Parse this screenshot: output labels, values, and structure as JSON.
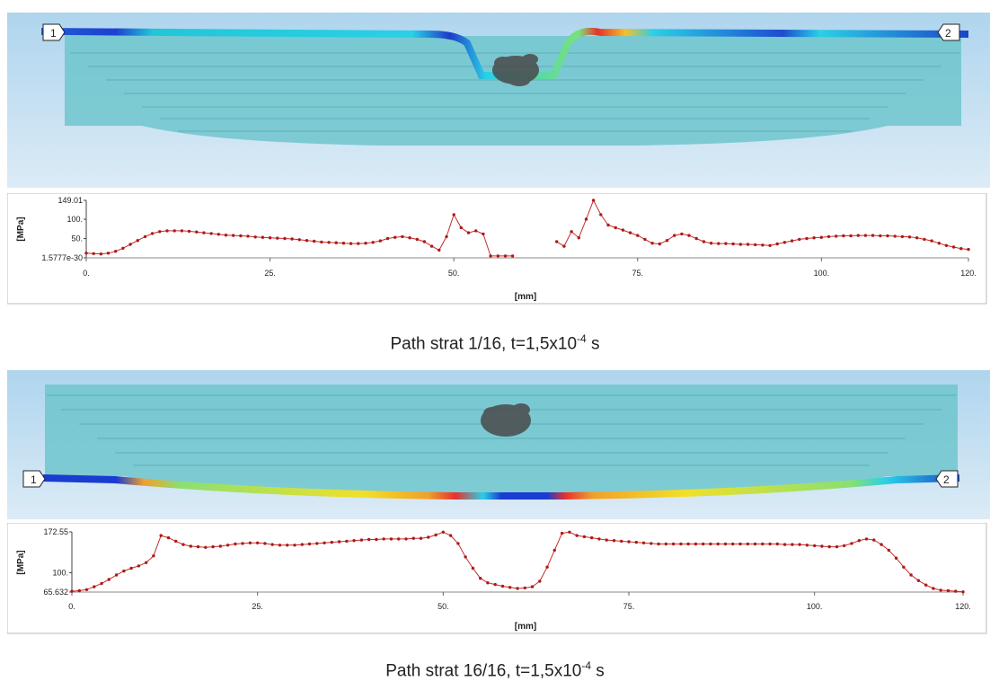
{
  "panels": [
    {
      "marker_start": "1",
      "marker_end": "2",
      "caption": {
        "prefix": "Path strat 1/16, t=1,5x10",
        "exp": "-4",
        "suffix": " s"
      }
    },
    {
      "marker_start": "1",
      "marker_end": "2",
      "caption": {
        "prefix": "Path strat 16/16, t=1,5x10",
        "exp": "-4",
        "suffix": " s"
      }
    }
  ],
  "colors": {
    "line": "#c0302a",
    "marker": "#b01818",
    "band_light": "#c9e2f3",
    "band_dark": "#8fc4e4",
    "plate": "#6ec5cc"
  },
  "chart_data": [
    {
      "type": "line",
      "xlabel": "[mm]",
      "ylabel": "[MPa]",
      "xlim": [
        0,
        120
      ],
      "ylim": [
        0,
        149.01
      ],
      "xticks": [
        "0.",
        "25.",
        "50.",
        "75.",
        "100.",
        "120."
      ],
      "ytick_values": [
        1.5777e-30,
        50,
        100,
        149.01
      ],
      "ytick_labels": [
        "1.5777e-30",
        "50.",
        "100.",
        "149.01"
      ],
      "series": [
        {
          "x": [
            0,
            1,
            2,
            3,
            4,
            5,
            6,
            7,
            8,
            9,
            10,
            11,
            12,
            13,
            14,
            15,
            16,
            17,
            18,
            19,
            20,
            21,
            22,
            23,
            24,
            25,
            26,
            27,
            28,
            29,
            30,
            31,
            32,
            33,
            34,
            35,
            36,
            37,
            38,
            39,
            40,
            41,
            42,
            43,
            44,
            45,
            46,
            47,
            48,
            49,
            50,
            51,
            52,
            53,
            54,
            55,
            56,
            57,
            58
          ],
          "y": [
            12,
            11,
            10,
            12,
            17,
            25,
            35,
            45,
            55,
            63,
            68,
            70,
            70,
            70,
            69,
            67,
            65,
            63,
            61,
            59,
            58,
            57,
            56,
            54,
            53,
            52,
            51,
            50,
            49,
            47,
            45,
            43,
            41,
            40,
            39,
            38,
            37,
            37,
            38,
            40,
            44,
            50,
            53,
            55,
            52,
            48,
            42,
            30,
            20,
            55,
            112,
            78,
            65,
            70,
            62,
            5,
            5,
            5,
            5
          ]
        },
        {
          "x": [
            64,
            65,
            66,
            67,
            68,
            69,
            70,
            71,
            72,
            73,
            74,
            75,
            76,
            77,
            78,
            79,
            80,
            81,
            82,
            83,
            84,
            85,
            86,
            87,
            88,
            89,
            90,
            91,
            92,
            93,
            94,
            95,
            96,
            97,
            98,
            99,
            100,
            101,
            102,
            103,
            104,
            105,
            106,
            107,
            108,
            109,
            110,
            111,
            112,
            113,
            114,
            115,
            116,
            117,
            118,
            119,
            120
          ],
          "y": [
            42,
            30,
            68,
            52,
            100,
            149,
            112,
            85,
            78,
            72,
            65,
            58,
            48,
            38,
            36,
            45,
            58,
            62,
            58,
            50,
            42,
            38,
            37,
            37,
            36,
            35,
            35,
            34,
            33,
            32,
            36,
            40,
            44,
            48,
            50,
            52,
            53,
            55,
            56,
            57,
            57,
            58,
            58,
            58,
            57,
            57,
            56,
            55,
            54,
            52,
            48,
            44,
            38,
            32,
            28,
            24,
            22
          ]
        }
      ]
    },
    {
      "type": "line",
      "xlabel": "[mm]",
      "ylabel": "[MPa]",
      "xlim": [
        0,
        120
      ],
      "ylim": [
        65.632,
        172.55
      ],
      "xticks": [
        "0.",
        "25.",
        "50.",
        "75.",
        "100.",
        "120."
      ],
      "ytick_values": [
        65.632,
        100,
        172.55
      ],
      "ytick_labels": [
        "65.632",
        "100.",
        "172.55"
      ],
      "series": [
        {
          "x": [
            0,
            1,
            2,
            3,
            4,
            5,
            6,
            7,
            8,
            9,
            10,
            11,
            12,
            13,
            14,
            15,
            16,
            17,
            18,
            19,
            20,
            21,
            22,
            23,
            24,
            25,
            26,
            27,
            28,
            29,
            30,
            31,
            32,
            33,
            34,
            35,
            36,
            37,
            38,
            39,
            40,
            41,
            42,
            43,
            44,
            45,
            46,
            47,
            48,
            49,
            50,
            51,
            52,
            53,
            54,
            55,
            56,
            57,
            58,
            59,
            60,
            61,
            62,
            63,
            64,
            65,
            66,
            67,
            68,
            69,
            70,
            71,
            72,
            73,
            74,
            75,
            76,
            77,
            78,
            79,
            80,
            81,
            82,
            83,
            84,
            85,
            86,
            87,
            88,
            89,
            90,
            91,
            92,
            93,
            94,
            95,
            96,
            97,
            98,
            99,
            100,
            101,
            102,
            103,
            104,
            105,
            106,
            107,
            108,
            109,
            110,
            111,
            112,
            113,
            114,
            115,
            116,
            117,
            118,
            119,
            120
          ],
          "y": [
            67,
            68,
            70,
            75,
            81,
            88,
            96,
            103,
            108,
            112,
            118,
            130,
            166,
            162,
            156,
            150,
            147,
            146,
            145,
            146,
            147,
            149,
            151,
            152,
            153,
            153,
            152,
            150,
            149,
            149,
            149,
            150,
            151,
            152,
            153,
            154,
            155,
            156,
            157,
            158,
            159,
            159,
            160,
            160,
            160,
            160,
            161,
            161,
            163,
            167,
            172,
            166,
            152,
            128,
            108,
            90,
            82,
            79,
            76,
            74,
            72,
            73,
            75,
            85,
            110,
            140,
            170,
            172,
            166,
            164,
            162,
            160,
            158,
            157,
            156,
            155,
            154,
            153,
            152,
            151,
            151,
            151,
            151,
            151,
            151,
            151,
            151,
            151,
            151,
            151,
            151,
            151,
            151,
            151,
            151,
            151,
            150,
            150,
            150,
            149,
            148,
            147,
            146,
            146,
            148,
            152,
            157,
            160,
            158,
            150,
            140,
            126,
            110,
            96,
            86,
            78,
            72,
            69,
            68,
            67,
            66
          ]
        }
      ]
    }
  ]
}
